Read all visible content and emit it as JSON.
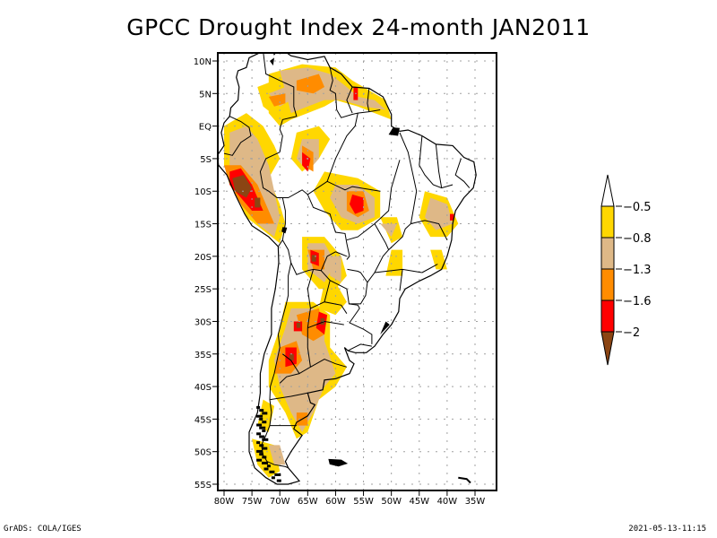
{
  "title": "GPCC Drought Index 24-month JAN2011",
  "map": {
    "projection": "latlon",
    "lon_range": [
      -80,
      -35
    ],
    "lat_range": [
      -55,
      10
    ],
    "lat_ticks": [
      {
        "value": 10,
        "label": "10N"
      },
      {
        "value": 5,
        "label": "5N"
      },
      {
        "value": 0,
        "label": "EQ"
      },
      {
        "value": -5,
        "label": "5S"
      },
      {
        "value": -10,
        "label": "10S"
      },
      {
        "value": -15,
        "label": "15S"
      },
      {
        "value": -20,
        "label": "20S"
      },
      {
        "value": -25,
        "label": "25S"
      },
      {
        "value": -30,
        "label": "30S"
      },
      {
        "value": -35,
        "label": "35S"
      },
      {
        "value": -40,
        "label": "40S"
      },
      {
        "value": -45,
        "label": "45S"
      },
      {
        "value": -50,
        "label": "50S"
      },
      {
        "value": -55,
        "label": "55S"
      }
    ],
    "lon_ticks": [
      {
        "value": -80,
        "label": "80W"
      },
      {
        "value": -75,
        "label": "75W"
      },
      {
        "value": -70,
        "label": "70W"
      },
      {
        "value": -65,
        "label": "65W"
      },
      {
        "value": -60,
        "label": "60W"
      },
      {
        "value": -55,
        "label": "55W"
      },
      {
        "value": -50,
        "label": "50W"
      },
      {
        "value": -45,
        "label": "45W"
      },
      {
        "value": -40,
        "label": "40W"
      },
      {
        "value": -35,
        "label": "35W"
      }
    ],
    "grid": true
  },
  "legend": {
    "levels": [
      {
        "label": "-0.5",
        "color": "#ffd700"
      },
      {
        "label": "-0.8",
        "color": "#deb887"
      },
      {
        "label": "-1.3",
        "color": "#ff8c00"
      },
      {
        "label": "-1.6",
        "color": "#ff0000"
      },
      {
        "label": "-2",
        "color": "#8b4513"
      }
    ],
    "top_arrow_color": "#ffffff",
    "bottom_arrow_color": "#8b4513"
  },
  "regions": [
    {
      "name": "venezuela-north",
      "lon": -62,
      "lat": 5,
      "level": 3
    },
    {
      "name": "guyana-coast",
      "lon": -56.5,
      "lat": 5,
      "level": 4
    },
    {
      "name": "colombia-central",
      "lon": -70,
      "lat": 5,
      "level": 3
    },
    {
      "name": "ecuador-peru-north",
      "lon": -77,
      "lat": -2,
      "level": 2
    },
    {
      "name": "peru-central",
      "lon": -77.5,
      "lat": -9,
      "level": 5
    },
    {
      "name": "peru-south",
      "lon": -74,
      "lat": -13,
      "level": 5
    },
    {
      "name": "amazon-west",
      "lon": -66,
      "lat": -5,
      "level": 4
    },
    {
      "name": "mato-grosso",
      "lon": -55,
      "lat": -12,
      "level": 4
    },
    {
      "name": "bahia-coast",
      "lon": -39.5,
      "lat": -14,
      "level": 4
    },
    {
      "name": "bolivia-chaco",
      "lon": -64,
      "lat": -20,
      "level": 5
    },
    {
      "name": "argentina-north",
      "lon": -64,
      "lat": -30,
      "level": 5
    },
    {
      "name": "argentina-west",
      "lon": -68,
      "lat": -29,
      "level": 5
    },
    {
      "name": "argentina-cuyo",
      "lon": -68.5,
      "lat": -35,
      "level": 5
    },
    {
      "name": "patagonia",
      "lon": -67,
      "lat": -45,
      "level": 3
    }
  ],
  "footer": {
    "left": "GrADS: COLA/IGES",
    "right": "2021-05-13-11:15"
  }
}
